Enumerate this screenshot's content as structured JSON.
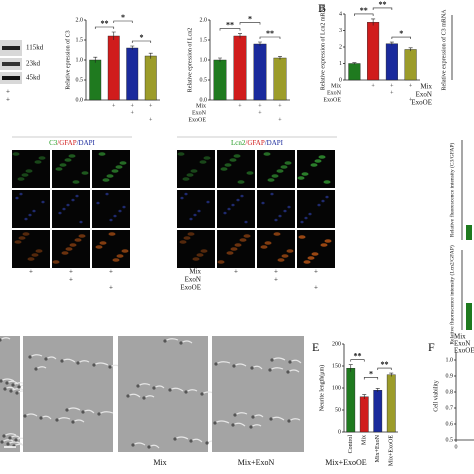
{
  "labels": {
    "panel_b": "B",
    "panel_e": "E",
    "panel_f": "F",
    "blot_sizes": [
      "115kd",
      "23kd",
      "45kd"
    ],
    "blot_marks": [
      "+",
      "+"
    ],
    "c3_mrna_label": "Relative expression of C3 mRNA",
    "right_partial_conditions": [
      "Mix",
      "ExoN",
      "ExoOE"
    ],
    "fluor_c3": "Relative fluorescence intensity (C3/GFAP)",
    "fluor_lcn2": "Relative fluorescence intensity (Lcn2/GFAP)",
    "fluor_conditions": [
      "Mix",
      "ExoN",
      "ExoOE"
    ],
    "brightfield": [
      "Mix",
      "Mix+ExoN",
      "Mix+ExoOE"
    ]
  },
  "micrographs": [
    {
      "heading": [
        "C3",
        "/GFAP",
        "/DAPI"
      ],
      "conditions": [
        [
          "+",
          "+",
          "+"
        ],
        [
          null,
          "+",
          null
        ],
        [
          null,
          null,
          "+"
        ]
      ]
    },
    {
      "heading": [
        "Lcn2",
        "/GFAP",
        "/DAPI"
      ],
      "condition_names": [
        "Mix",
        "ExoN",
        "ExoOE"
      ],
      "conditions": [
        [
          null,
          "+",
          "+",
          "+"
        ],
        [
          null,
          null,
          "+",
          null
        ],
        [
          null,
          null,
          null,
          "+"
        ]
      ]
    }
  ],
  "chart_data": [
    {
      "type": "bar",
      "y_label": "Relative epression of C3",
      "values": [
        1.0,
        1.6,
        1.3,
        1.1
      ],
      "errors": [
        0.07,
        0.1,
        0.05,
        0.07
      ],
      "colors": [
        "#1f7a1f",
        "#d01c1c",
        "#1a2a9c",
        "#9c9c2a"
      ],
      "ylim": [
        0,
        2
      ],
      "yticks": [
        {
          "value": 0,
          "label": "0.0"
        },
        0.5,
        {
          "value": 1,
          "label": "1.0"
        },
        1.5,
        {
          "value": 2,
          "label": "2.0"
        }
      ],
      "significance": [
        "**",
        "*",
        "*"
      ],
      "conditions": [
        {
          "marks": [
            null,
            "+",
            "+",
            "+"
          ]
        },
        {
          "marks": [
            null,
            null,
            "+",
            null
          ]
        },
        {
          "marks": [
            null,
            null,
            null,
            "+"
          ]
        }
      ]
    },
    {
      "type": "bar",
      "y_label": "Relative epression of Lcn2",
      "values": [
        1.0,
        1.6,
        1.4,
        1.05
      ],
      "errors": [
        0.05,
        0.06,
        0.05,
        0.04
      ],
      "colors": [
        "#1f7a1f",
        "#d01c1c",
        "#1a2a9c",
        "#9c9c2a"
      ],
      "ylim": [
        0,
        2
      ],
      "yticks": [
        {
          "value": 0,
          "label": "0.0"
        },
        0.5,
        {
          "value": 1,
          "label": "1.0"
        },
        1.5,
        {
          "value": 2,
          "label": "2.0"
        }
      ],
      "significance": [
        "**",
        "*",
        "**"
      ],
      "conditions": [
        {
          "name": "Mix",
          "marks": [
            null,
            "+",
            "+",
            "+"
          ]
        },
        {
          "name": "ExoN",
          "marks": [
            null,
            null,
            "+",
            null
          ]
        },
        {
          "name": "ExoOE",
          "marks": [
            null,
            null,
            null,
            "+"
          ]
        }
      ]
    },
    {
      "type": "bar",
      "y_label": "Relative expression of Lcn2 mRNA",
      "values": [
        1.0,
        3.5,
        2.2,
        1.85
      ],
      "errors": [
        0.05,
        0.2,
        0.1,
        0.1
      ],
      "colors": [
        "#1f7a1f",
        "#d01c1c",
        "#1a2a9c",
        "#9c9c2a"
      ],
      "ylim": [
        0,
        4
      ],
      "yticks": [
        0,
        1,
        2,
        3,
        4
      ],
      "significance": [
        "**",
        "**",
        "*"
      ],
      "conditions": [
        {
          "name": "Mix",
          "marks": [
            null,
            "+",
            "+",
            "+"
          ]
        },
        {
          "name": "ExoN",
          "marks": [
            null,
            null,
            "+",
            null
          ]
        },
        {
          "name": "ExoOE",
          "marks": [
            null,
            null,
            null,
            "+"
          ]
        }
      ]
    },
    {
      "type": "bar",
      "y_label": "Neurite length(μm)",
      "categories": [
        "Control",
        "Mix",
        "Mix+ExoN",
        "Mix+ExoOE"
      ],
      "values": [
        145,
        80,
        95,
        130
      ],
      "errors": [
        8,
        5,
        4,
        4
      ],
      "colors": [
        "#1f7a1f",
        "#d01c1c",
        "#1a2a9c",
        "#9c9c2a"
      ],
      "ylim": [
        0,
        200
      ],
      "yticks": [
        0,
        50,
        100,
        150,
        200
      ],
      "significance": [
        "**",
        "*",
        "**"
      ]
    },
    {
      "type": "line",
      "y_label": "Cell viability",
      "ylim": [
        0.5,
        1.05
      ],
      "yticks": [
        0.5,
        0.6,
        0.7,
        0.8,
        0.9,
        {
          "value": 1,
          "label": "1.0"
        }
      ],
      "xlim": [
        0,
        40
      ],
      "xticks": [
        0,
        10
      ]
    }
  ]
}
